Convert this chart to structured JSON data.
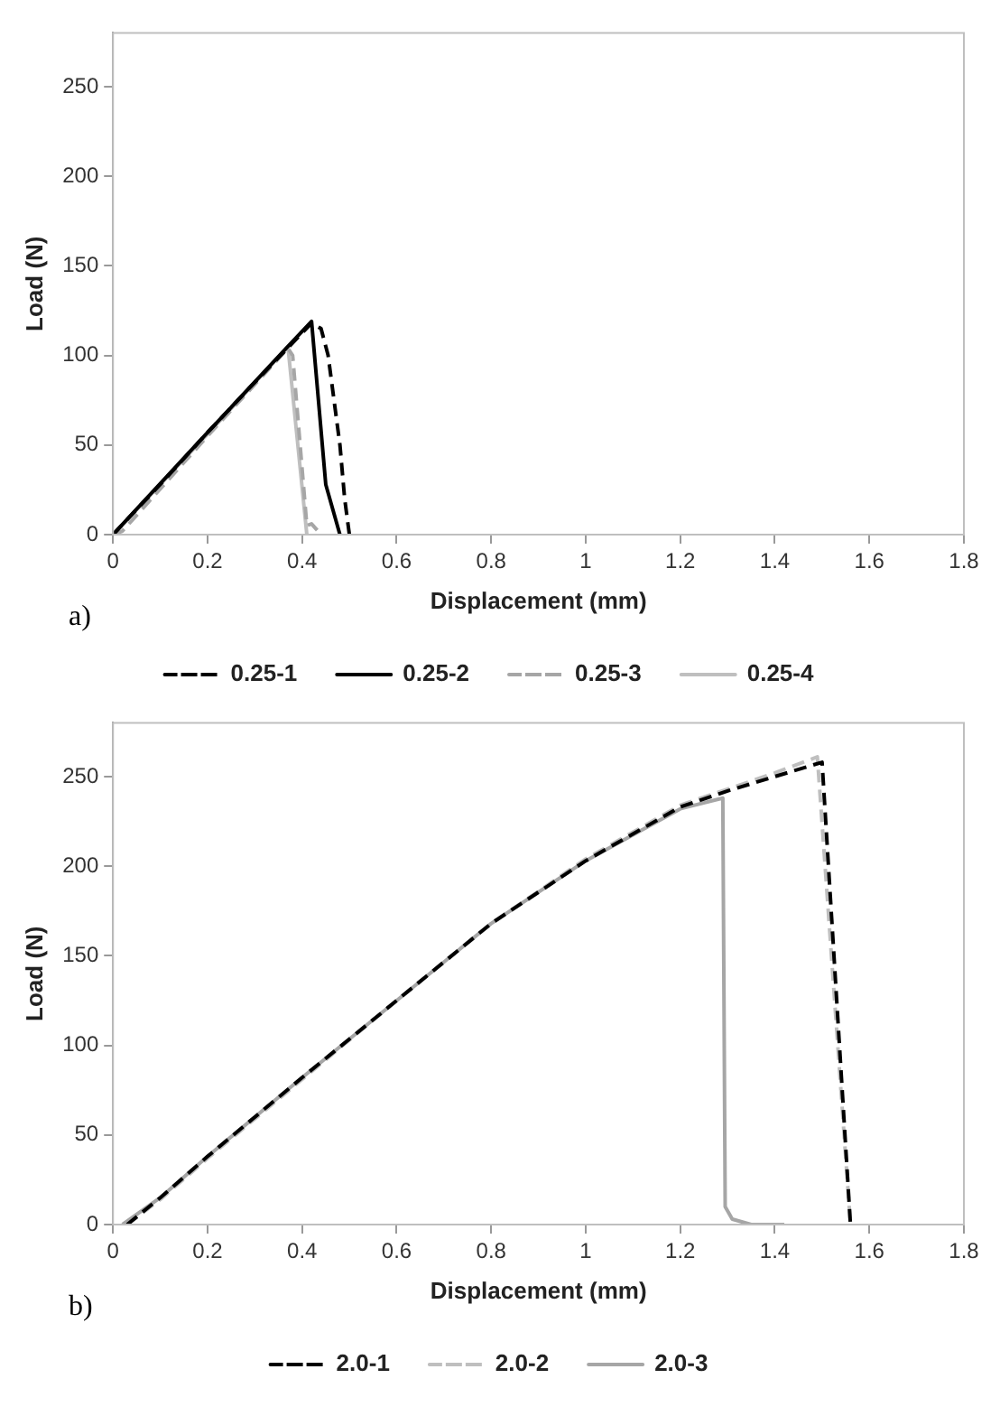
{
  "chart_data": [
    {
      "type": "line",
      "xlabel": "Displacement (mm)",
      "ylabel": "Load (N)",
      "annotations": [
        "a)"
      ],
      "xlim": [
        0,
        1.8
      ],
      "xticks": [
        0,
        0.2,
        0.4,
        0.6,
        0.8,
        1,
        1.2,
        1.4,
        1.6,
        1.8
      ],
      "ylim": [
        0,
        280
      ],
      "yticks": [
        0,
        50,
        100,
        150,
        200,
        250
      ],
      "grid": false,
      "legend": "bottom",
      "marker": "none",
      "series": [
        {
          "name": "0.25-1",
          "color": "#000000",
          "line_style": "dashed",
          "x": [
            0,
            0.1,
            0.2,
            0.3,
            0.42,
            0.44,
            0.455,
            0.48,
            0.49,
            0.5
          ],
          "values": [
            0,
            28,
            57,
            85,
            118,
            115,
            100,
            50,
            20,
            0
          ]
        },
        {
          "name": "0.25-2",
          "color": "#000000",
          "line_style": "solid",
          "x": [
            0,
            0.2,
            0.37,
            0.42,
            0.45,
            0.48
          ],
          "values": [
            0,
            57,
            105,
            119,
            28,
            0
          ]
        },
        {
          "name": "0.25-3",
          "color": "#a6a6a6",
          "line_style": "dashed",
          "x": [
            0,
            0.02,
            0.2,
            0.37,
            0.38,
            0.41,
            0.42,
            0.44
          ],
          "values": [
            0,
            2,
            55,
            104,
            100,
            5,
            6,
            0
          ]
        },
        {
          "name": "0.25-4",
          "color": "#bfbfbf",
          "line_style": "solid",
          "x": [
            0,
            0.2,
            0.37,
            0.41
          ],
          "values": [
            0,
            56,
            105,
            0
          ]
        }
      ]
    },
    {
      "type": "line",
      "xlabel": "Displacement (mm)",
      "ylabel": "Load (N)",
      "annotations": [
        "b)"
      ],
      "xlim": [
        0,
        1.8
      ],
      "xticks": [
        0,
        0.2,
        0.4,
        0.6,
        0.8,
        1,
        1.2,
        1.4,
        1.6,
        1.8
      ],
      "ylim": [
        0,
        280
      ],
      "yticks": [
        0,
        50,
        100,
        150,
        200,
        250
      ],
      "grid": false,
      "legend": "bottom",
      "marker": "none",
      "series": [
        {
          "name": "2.0-1",
          "color": "#000000",
          "line_style": "dashed",
          "x": [
            0.03,
            0.1,
            0.2,
            0.4,
            0.6,
            0.8,
            1.0,
            1.2,
            1.3,
            1.4,
            1.5,
            1.56
          ],
          "values": [
            0,
            15,
            38,
            82,
            125,
            168,
            203,
            233,
            242,
            250,
            258,
            0
          ]
        },
        {
          "name": "2.0-2",
          "color": "#bfbfbf",
          "line_style": "dashed",
          "x": [
            0.03,
            0.1,
            0.2,
            0.4,
            0.6,
            0.8,
            1.0,
            1.2,
            1.3,
            1.4,
            1.49,
            1.56
          ],
          "values": [
            0,
            14,
            37,
            81,
            125,
            168,
            204,
            234,
            243,
            252,
            261,
            0
          ]
        },
        {
          "name": "2.0-3",
          "color": "#a6a6a6",
          "line_style": "solid",
          "x": [
            0.02,
            0.1,
            0.2,
            0.4,
            0.6,
            0.8,
            1.0,
            1.2,
            1.29,
            1.295,
            1.31,
            1.35,
            1.42
          ],
          "values": [
            0,
            15,
            38,
            82,
            125,
            168,
            203,
            232,
            238,
            10,
            3,
            0,
            0
          ]
        }
      ]
    }
  ]
}
